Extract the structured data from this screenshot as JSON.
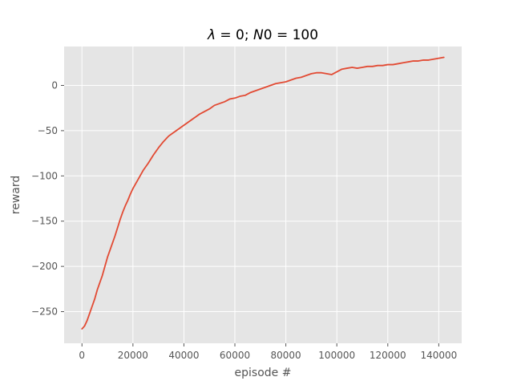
{
  "chart_data": {
    "type": "line",
    "title_parts": {
      "lambda_symbol": "λ",
      "lambda_eq": " = 0; ",
      "n0_symbol": "N",
      "n0_rest": "0",
      "n0_eq": " = 100"
    },
    "xlabel": "episode #",
    "ylabel": "reward",
    "xlim": [
      -7000,
      149000
    ],
    "ylim": [
      -285,
      43
    ],
    "xticks": [
      0,
      20000,
      40000,
      60000,
      80000,
      100000,
      120000,
      140000
    ],
    "yticks": [
      -250,
      -200,
      -150,
      -100,
      -50,
      0
    ],
    "grid": true,
    "line_color": "#E24A33",
    "series": [
      {
        "x": [
          0,
          1000,
          2000,
          3000,
          4000,
          5000,
          6000,
          7000,
          8000,
          9000,
          10000,
          11000,
          12000,
          13000,
          14000,
          15000,
          16000,
          17000,
          18000,
          19000,
          20000,
          22000,
          24000,
          26000,
          28000,
          30000,
          32000,
          34000,
          36000,
          38000,
          40000,
          42000,
          44000,
          46000,
          48000,
          50000,
          52000,
          54000,
          56000,
          58000,
          60000,
          62000,
          64000,
          66000,
          68000,
          70000,
          72000,
          74000,
          76000,
          78000,
          80000,
          82000,
          84000,
          86000,
          88000,
          90000,
          92000,
          94000,
          96000,
          98000,
          100000,
          102000,
          104000,
          106000,
          108000,
          110000,
          112000,
          114000,
          116000,
          118000,
          120000,
          122000,
          124000,
          126000,
          128000,
          130000,
          132000,
          134000,
          136000,
          138000,
          140000,
          142000
        ],
        "y": [
          -269,
          -266,
          -260,
          -252,
          -244,
          -236,
          -226,
          -218,
          -210,
          -200,
          -190,
          -182,
          -174,
          -166,
          -157,
          -148,
          -140,
          -133,
          -127,
          -120,
          -114,
          -104,
          -94,
          -86,
          -77,
          -69,
          -62,
          -56,
          -52,
          -48,
          -44,
          -40,
          -36,
          -32,
          -29,
          -26,
          -22,
          -20,
          -18,
          -15,
          -14,
          -12,
          -11,
          -8,
          -6,
          -4,
          -2,
          0,
          2,
          3,
          4,
          6,
          8,
          9,
          11,
          13,
          14,
          14,
          13,
          12,
          15,
          18,
          19,
          20,
          19,
          20,
          21,
          21,
          22,
          22,
          23,
          23,
          24,
          25,
          26,
          27,
          27,
          28,
          28,
          29,
          30,
          31
        ]
      }
    ]
  }
}
